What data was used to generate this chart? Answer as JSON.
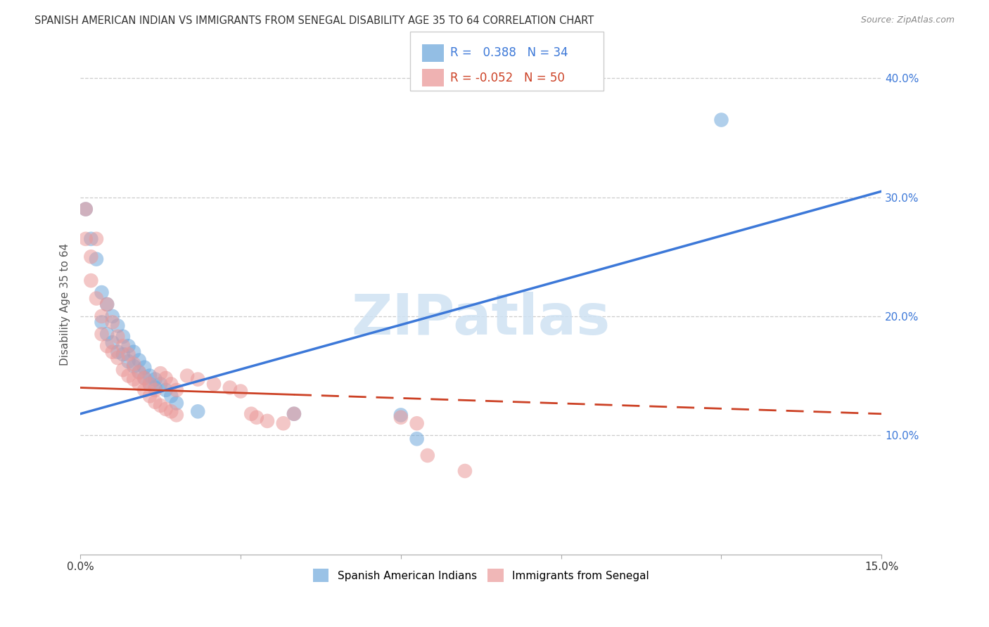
{
  "title": "SPANISH AMERICAN INDIAN VS IMMIGRANTS FROM SENEGAL DISABILITY AGE 35 TO 64 CORRELATION CHART",
  "source": "Source: ZipAtlas.com",
  "ylabel": "Disability Age 35 to 64",
  "x_min": 0.0,
  "x_max": 0.15,
  "y_min": 0.0,
  "y_max": 0.42,
  "blue_R": 0.388,
  "blue_N": 34,
  "pink_R": -0.052,
  "pink_N": 50,
  "legend1_label": "Spanish American Indians",
  "legend2_label": "Immigrants from Senegal",
  "blue_color": "#6fa8dc",
  "pink_color": "#ea9999",
  "blue_line_color": "#3c78d8",
  "pink_line_color": "#cc4125",
  "watermark": "ZIPatlas",
  "blue_line_y0": 0.118,
  "blue_line_y1": 0.305,
  "pink_line_y0": 0.14,
  "pink_line_y1": 0.118,
  "blue_scatter": [
    [
      0.001,
      0.29
    ],
    [
      0.002,
      0.265
    ],
    [
      0.003,
      0.248
    ],
    [
      0.004,
      0.22
    ],
    [
      0.004,
      0.195
    ],
    [
      0.005,
      0.21
    ],
    [
      0.005,
      0.185
    ],
    [
      0.006,
      0.2
    ],
    [
      0.006,
      0.178
    ],
    [
      0.007,
      0.192
    ],
    [
      0.007,
      0.17
    ],
    [
      0.008,
      0.183
    ],
    [
      0.008,
      0.168
    ],
    [
      0.009,
      0.175
    ],
    [
      0.009,
      0.162
    ],
    [
      0.01,
      0.17
    ],
    [
      0.01,
      0.158
    ],
    [
      0.011,
      0.163
    ],
    [
      0.011,
      0.153
    ],
    [
      0.012,
      0.157
    ],
    [
      0.012,
      0.148
    ],
    [
      0.013,
      0.15
    ],
    [
      0.013,
      0.143
    ],
    [
      0.014,
      0.147
    ],
    [
      0.014,
      0.14
    ],
    [
      0.015,
      0.143
    ],
    [
      0.016,
      0.138
    ],
    [
      0.017,
      0.133
    ],
    [
      0.018,
      0.127
    ],
    [
      0.022,
      0.12
    ],
    [
      0.04,
      0.118
    ],
    [
      0.06,
      0.117
    ],
    [
      0.063,
      0.097
    ],
    [
      0.12,
      0.365
    ]
  ],
  "pink_scatter": [
    [
      0.001,
      0.29
    ],
    [
      0.001,
      0.265
    ],
    [
      0.002,
      0.25
    ],
    [
      0.002,
      0.23
    ],
    [
      0.003,
      0.265
    ],
    [
      0.003,
      0.215
    ],
    [
      0.004,
      0.2
    ],
    [
      0.004,
      0.185
    ],
    [
      0.005,
      0.21
    ],
    [
      0.005,
      0.175
    ],
    [
      0.006,
      0.195
    ],
    [
      0.006,
      0.17
    ],
    [
      0.007,
      0.183
    ],
    [
      0.007,
      0.165
    ],
    [
      0.008,
      0.175
    ],
    [
      0.008,
      0.155
    ],
    [
      0.009,
      0.168
    ],
    [
      0.009,
      0.15
    ],
    [
      0.01,
      0.16
    ],
    [
      0.01,
      0.147
    ],
    [
      0.011,
      0.153
    ],
    [
      0.011,
      0.143
    ],
    [
      0.012,
      0.148
    ],
    [
      0.012,
      0.138
    ],
    [
      0.013,
      0.143
    ],
    [
      0.013,
      0.133
    ],
    [
      0.014,
      0.138
    ],
    [
      0.014,
      0.128
    ],
    [
      0.015,
      0.152
    ],
    [
      0.015,
      0.125
    ],
    [
      0.016,
      0.148
    ],
    [
      0.016,
      0.122
    ],
    [
      0.017,
      0.143
    ],
    [
      0.017,
      0.12
    ],
    [
      0.018,
      0.138
    ],
    [
      0.018,
      0.117
    ],
    [
      0.02,
      0.15
    ],
    [
      0.022,
      0.147
    ],
    [
      0.025,
      0.143
    ],
    [
      0.028,
      0.14
    ],
    [
      0.03,
      0.137
    ],
    [
      0.032,
      0.118
    ],
    [
      0.033,
      0.115
    ],
    [
      0.035,
      0.112
    ],
    [
      0.038,
      0.11
    ],
    [
      0.04,
      0.118
    ],
    [
      0.06,
      0.115
    ],
    [
      0.063,
      0.11
    ],
    [
      0.065,
      0.083
    ],
    [
      0.072,
      0.07
    ]
  ]
}
